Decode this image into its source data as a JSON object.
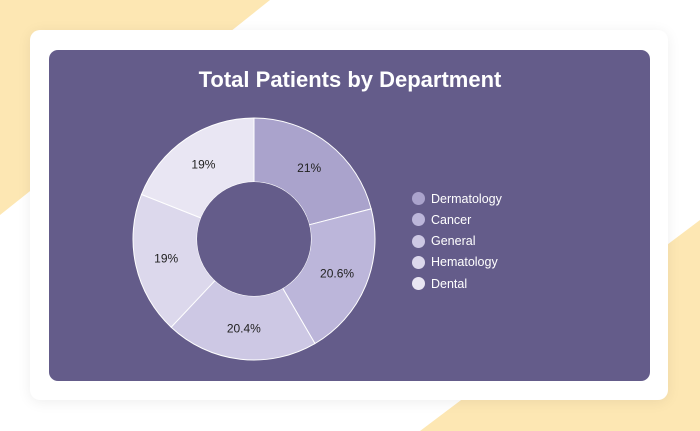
{
  "chart_data": {
    "type": "pie",
    "title": "Total Patients by Department",
    "categories": [
      "Dermatology",
      "Cancer",
      "General",
      "Hematology",
      "Dental"
    ],
    "values": [
      21,
      20.6,
      20.4,
      19,
      19
    ],
    "labels": [
      "21%",
      "20.6%",
      "20.4%",
      "19%",
      "19%"
    ],
    "colors": [
      "#aaa3cc",
      "#bcb6da",
      "#cdc8e4",
      "#dcd8ec",
      "#e9e6f3"
    ],
    "donut": true,
    "legend_position": "right"
  },
  "colors": {
    "panel": "#645c8a",
    "background_accent": "#fde7b3"
  }
}
